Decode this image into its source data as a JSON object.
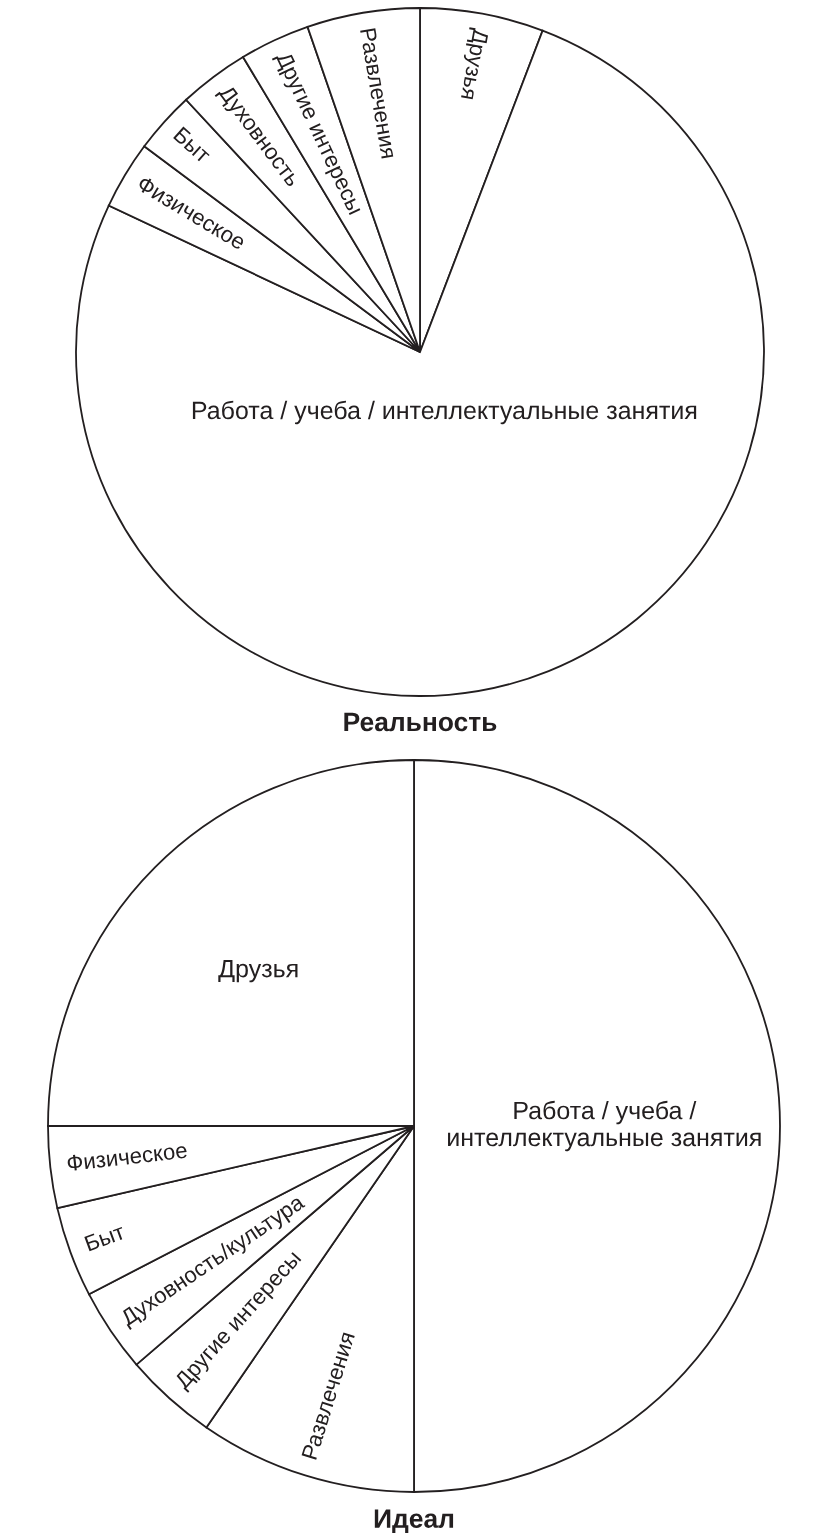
{
  "chart_data": [
    {
      "type": "pie",
      "title": "Реальность",
      "categories": [
        "Друзья",
        "Работа / учеба / интеллектуальные занятия",
        "Физическое",
        "Быт",
        "Духовность",
        "Другие интересы",
        "Развлечения"
      ],
      "values": [
        5.8,
        76.2,
        3.2,
        2.9,
        3.3,
        3.3,
        5.3
      ],
      "colors": [
        "#ffffff",
        "#ffffff",
        "#ffffff",
        "#ffffff",
        "#ffffff",
        "#ffffff",
        "#ffffff"
      ]
    },
    {
      "type": "pie",
      "title": "Идеал",
      "categories": [
        "Работа / учеба /\nинтеллектуальные занятия",
        "Развлечения",
        "Другие интересы",
        "Духовность/культура",
        "Быт",
        "Физическое",
        "Друзья"
      ],
      "values": [
        50,
        9.6,
        4.1,
        3.7,
        4.0,
        3.6,
        25
      ],
      "colors": [
        "#ffffff",
        "#ffffff",
        "#ffffff",
        "#ffffff",
        "#ffffff",
        "#ffffff",
        "#ffffff"
      ]
    }
  ]
}
